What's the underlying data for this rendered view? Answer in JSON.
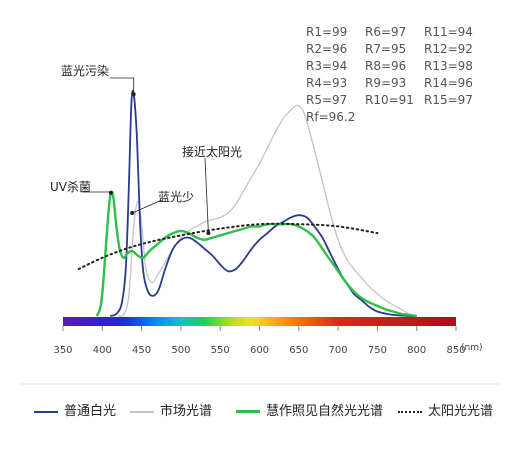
{
  "chart_data": {
    "type": "line",
    "xlabel": "",
    "ylabel": "",
    "x_unit": "(nm)",
    "xlim": [
      350,
      850
    ],
    "xticks": [
      350,
      400,
      450,
      500,
      550,
      600,
      650,
      700,
      750,
      800,
      850
    ],
    "ylim": [
      0,
      1
    ],
    "grid": false,
    "legend_position": "bottom",
    "colors": {
      "blue": "#2a3a8c",
      "gray": "#c4c4c4",
      "green": "#2fbf4a",
      "dotted": "#222222"
    },
    "series": [
      {
        "name": "普通白光",
        "color": "#2a3a8c",
        "style": "solid",
        "x": [
          410,
          418,
          425,
          430,
          434,
          437,
          440,
          444,
          448,
          452,
          458,
          465,
          472,
          480,
          490,
          500,
          510,
          520,
          530,
          540,
          550,
          560,
          570,
          580,
          590,
          600,
          610,
          620,
          630,
          640,
          650,
          660,
          670,
          680,
          690,
          700,
          710,
          720,
          730,
          740,
          750,
          770,
          790,
          800
        ],
        "y": [
          0.0,
          0.01,
          0.06,
          0.22,
          0.6,
          0.95,
          0.99,
          0.8,
          0.42,
          0.2,
          0.11,
          0.09,
          0.12,
          0.21,
          0.3,
          0.34,
          0.35,
          0.33,
          0.3,
          0.27,
          0.23,
          0.2,
          0.21,
          0.25,
          0.3,
          0.34,
          0.37,
          0.4,
          0.42,
          0.44,
          0.45,
          0.44,
          0.4,
          0.35,
          0.28,
          0.21,
          0.15,
          0.1,
          0.07,
          0.04,
          0.02,
          0.005,
          0.0,
          0.0
        ]
      },
      {
        "name": "市场光谱",
        "color": "#c4c4c4",
        "style": "solid",
        "x": [
          420,
          428,
          434,
          440,
          445,
          450,
          455,
          462,
          470,
          480,
          490,
          500,
          510,
          520,
          530,
          540,
          550,
          560,
          570,
          580,
          590,
          600,
          610,
          620,
          630,
          640,
          648,
          655,
          660,
          670,
          680,
          690,
          700,
          710,
          720,
          730,
          740,
          750,
          760,
          770,
          780,
          790,
          800
        ],
        "y": [
          0.0,
          0.01,
          0.1,
          0.4,
          0.51,
          0.42,
          0.22,
          0.15,
          0.18,
          0.24,
          0.3,
          0.35,
          0.38,
          0.4,
          0.42,
          0.43,
          0.44,
          0.46,
          0.5,
          0.56,
          0.62,
          0.68,
          0.75,
          0.82,
          0.88,
          0.92,
          0.94,
          0.92,
          0.87,
          0.74,
          0.6,
          0.46,
          0.34,
          0.26,
          0.21,
          0.17,
          0.13,
          0.1,
          0.07,
          0.05,
          0.03,
          0.01,
          0.0
        ]
      },
      {
        "name": "慧作照见自然光光谱",
        "color": "#2fbf4a",
        "style": "solid",
        "x": [
          393,
          397,
          400,
          404,
          408,
          411,
          414,
          418,
          422,
          427,
          432,
          438,
          445,
          452,
          460,
          470,
          480,
          490,
          500,
          510,
          520,
          530,
          540,
          550,
          560,
          570,
          580,
          590,
          600,
          610,
          620,
          630,
          640,
          650,
          660,
          670,
          680,
          690,
          700,
          710,
          720,
          730,
          740,
          750,
          760,
          770,
          780,
          790,
          800
        ],
        "y": [
          0.0,
          0.03,
          0.1,
          0.28,
          0.47,
          0.55,
          0.53,
          0.4,
          0.3,
          0.26,
          0.28,
          0.29,
          0.27,
          0.26,
          0.29,
          0.32,
          0.35,
          0.37,
          0.38,
          0.37,
          0.35,
          0.34,
          0.35,
          0.36,
          0.37,
          0.38,
          0.39,
          0.4,
          0.4,
          0.41,
          0.41,
          0.41,
          0.41,
          0.4,
          0.38,
          0.35,
          0.3,
          0.25,
          0.2,
          0.15,
          0.11,
          0.08,
          0.06,
          0.045,
          0.03,
          0.02,
          0.01,
          0.005,
          0.0
        ]
      },
      {
        "name": "太阳光光谱",
        "color": "#222222",
        "style": "dotted",
        "x": [
          370,
          400,
          430,
          460,
          500,
          550,
          600,
          650,
          700,
          750
        ],
        "y": [
          0.21,
          0.26,
          0.3,
          0.33,
          0.36,
          0.39,
          0.41,
          0.41,
          0.4,
          0.37
        ]
      }
    ],
    "cri": {
      "columns": [
        [
          "R1=99",
          "R2=96",
          "R3=94",
          "R4=93",
          "R5=97",
          "Rf=96.2"
        ],
        [
          "R6=97",
          "R7=95",
          "R8=96",
          "R9=93",
          "R10=91"
        ],
        [
          "R11=94",
          "R12=92",
          "R13=98",
          "R14=96",
          "R15=97"
        ]
      ]
    },
    "annotations": [
      {
        "text": "蓝光污染",
        "x": 440,
        "y": 0.99,
        "label_position": "above-left"
      },
      {
        "text": "UV杀菌",
        "x": 411,
        "y": 0.55,
        "label_position": "above-left"
      },
      {
        "text": "蓝光少",
        "x": 438,
        "y": 0.46,
        "label_position": "above-right"
      },
      {
        "text": "接近太阳光",
        "x": 535,
        "y": 0.37,
        "label_position": "above-right"
      }
    ]
  }
}
